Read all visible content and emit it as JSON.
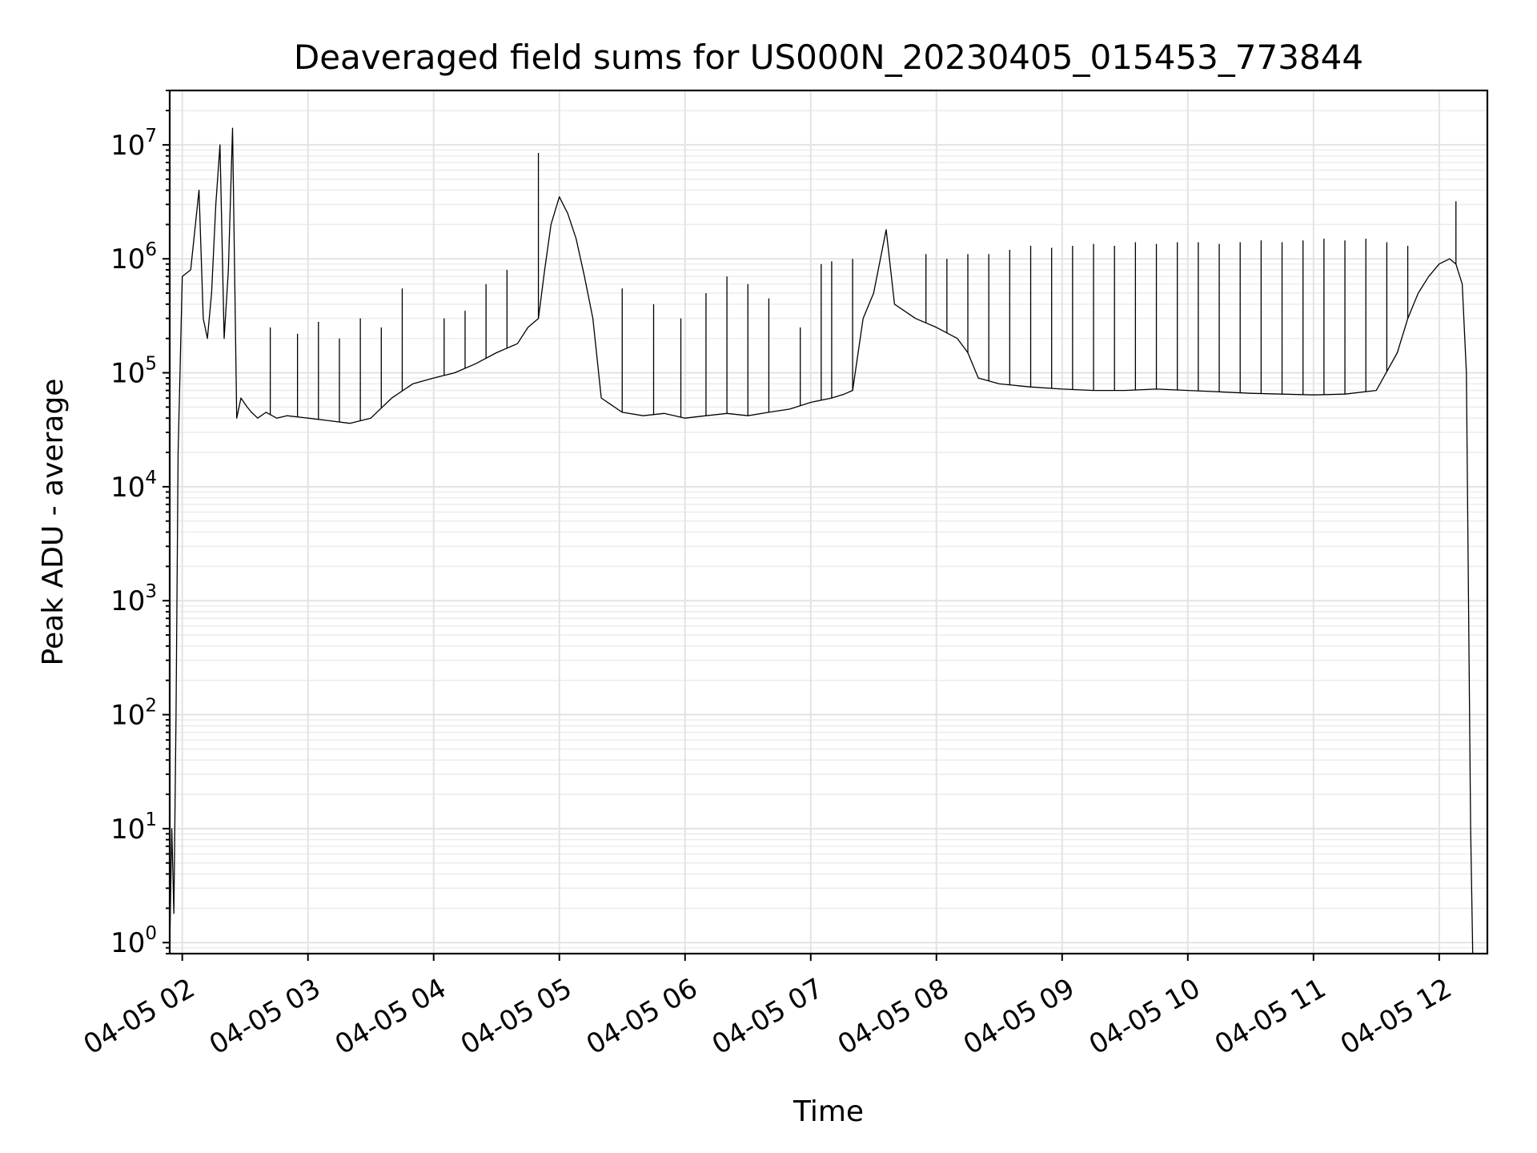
{
  "chart_data": {
    "type": "line",
    "title": "Deaveraged field sums for US000N_20230405_015453_773844",
    "xlabel": "Time",
    "ylabel": "Peak ADU - average",
    "yscale": "log",
    "grid": true,
    "xlim": [
      "04-05 01:54",
      "04-05 12:23"
    ],
    "ylim": [
      0.8,
      30000000
    ],
    "x_ticks": [
      "04-05 02",
      "04-05 03",
      "04-05 04",
      "04-05 05",
      "04-05 06",
      "04-05 07",
      "04-05 08",
      "04-05 09",
      "04-05 10",
      "04-05 11",
      "04-05 12"
    ],
    "y_ticks": [
      {
        "base": "10",
        "exp": "0"
      },
      {
        "base": "10",
        "exp": "1"
      },
      {
        "base": "10",
        "exp": "2"
      },
      {
        "base": "10",
        "exp": "3"
      },
      {
        "base": "10",
        "exp": "4"
      },
      {
        "base": "10",
        "exp": "5"
      },
      {
        "base": "10",
        "exp": "6"
      },
      {
        "base": "10",
        "exp": "7"
      }
    ],
    "series": [
      {
        "color": "#000000",
        "x": [
          "04-05 01:54",
          "04-05 01:55",
          "04-05 01:56",
          "04-05 01:57",
          "04-05 01:58",
          "04-05 02:00",
          "04-05 02:04",
          "04-05 02:08",
          "04-05 02:10",
          "04-05 02:12",
          "04-05 02:14",
          "04-05 02:16",
          "04-05 02:18",
          "04-05 02:20",
          "04-05 02:22",
          "04-05 02:24",
          "04-05 02:26",
          "04-05 02:28",
          "04-05 02:31",
          "04-05 02:33",
          "04-05 02:36",
          "04-05 02:40",
          "04-05 02:45",
          "04-05 02:50",
          "04-05 03:00",
          "04-05 03:10",
          "04-05 03:20",
          "04-05 03:30",
          "04-05 03:40",
          "04-05 03:50",
          "04-05 04:00",
          "04-05 04:10",
          "04-05 04:20",
          "04-05 04:30",
          "04-05 04:40",
          "04-05 04:45",
          "04-05 04:50",
          "04-05 04:53",
          "04-05 04:56",
          "04-05 05:00",
          "04-05 05:04",
          "04-05 05:08",
          "04-05 05:12",
          "04-05 05:16",
          "04-05 05:20",
          "04-05 05:30",
          "04-05 05:40",
          "04-05 05:50",
          "04-05 06:00",
          "04-05 06:10",
          "04-05 06:20",
          "04-05 06:30",
          "04-05 06:40",
          "04-05 06:50",
          "04-05 07:00",
          "04-05 07:10",
          "04-05 07:16",
          "04-05 07:20",
          "04-05 07:25",
          "04-05 07:30",
          "04-05 07:36",
          "04-05 07:40",
          "04-05 07:50",
          "04-05 08:00",
          "04-05 08:10",
          "04-05 08:15",
          "04-05 08:20",
          "04-05 08:30",
          "04-05 08:45",
          "04-05 09:00",
          "04-05 09:15",
          "04-05 09:30",
          "04-05 09:45",
          "04-05 10:00",
          "04-05 10:15",
          "04-05 10:30",
          "04-05 10:45",
          "04-05 11:00",
          "04-05 11:15",
          "04-05 11:30",
          "04-05 11:40",
          "04-05 11:45",
          "04-05 11:50",
          "04-05 11:55",
          "04-05 12:00",
          "04-05 12:05",
          "04-05 12:08",
          "04-05 12:11",
          "04-05 12:13",
          "04-05 12:15",
          "04-05 12:16"
        ],
        "y": [
          0.9,
          10,
          1.8,
          100,
          20000,
          700000,
          800000,
          4000000,
          300000,
          200000,
          500000,
          3000000,
          10000000,
          200000,
          800000,
          14000000,
          40000,
          60000,
          50000,
          45000,
          40000,
          45000,
          40000,
          42000,
          40000,
          38000,
          36000,
          40000,
          60000,
          80000,
          90000,
          100000,
          120000,
          150000,
          180000,
          250000,
          300000,
          800000,
          2000000,
          3500000,
          2500000,
          1500000,
          700000,
          300000,
          60000,
          45000,
          42000,
          44000,
          40000,
          42000,
          44000,
          42000,
          45000,
          48000,
          55000,
          60000,
          65000,
          70000,
          300000,
          500000,
          1800000,
          400000,
          300000,
          250000,
          200000,
          150000,
          90000,
          80000,
          75000,
          72000,
          70000,
          70000,
          72000,
          70000,
          68000,
          66000,
          65000,
          64000,
          65000,
          70000,
          150000,
          300000,
          500000,
          700000,
          900000,
          1000000,
          900000,
          600000,
          100000,
          10,
          0.8
        ]
      }
    ],
    "spikes": [
      {
        "x": "04-05 02:42",
        "y": 250000
      },
      {
        "x": "04-05 02:55",
        "y": 220000
      },
      {
        "x": "04-05 03:05",
        "y": 280000
      },
      {
        "x": "04-05 03:15",
        "y": 200000
      },
      {
        "x": "04-05 03:25",
        "y": 300000
      },
      {
        "x": "04-05 03:35",
        "y": 250000
      },
      {
        "x": "04-05 03:45",
        "y": 550000
      },
      {
        "x": "04-05 04:05",
        "y": 300000
      },
      {
        "x": "04-05 04:15",
        "y": 350000
      },
      {
        "x": "04-05 04:25",
        "y": 600000
      },
      {
        "x": "04-05 04:35",
        "y": 800000
      },
      {
        "x": "04-05 04:50",
        "y": 8500000
      },
      {
        "x": "04-05 05:30",
        "y": 550000
      },
      {
        "x": "04-05 05:45",
        "y": 400000
      },
      {
        "x": "04-05 05:58",
        "y": 300000
      },
      {
        "x": "04-05 06:10",
        "y": 500000
      },
      {
        "x": "04-05 06:20",
        "y": 700000
      },
      {
        "x": "04-05 06:30",
        "y": 600000
      },
      {
        "x": "04-05 06:40",
        "y": 450000
      },
      {
        "x": "04-05 06:55",
        "y": 250000
      },
      {
        "x": "04-05 07:05",
        "y": 900000
      },
      {
        "x": "04-05 07:10",
        "y": 950000
      },
      {
        "x": "04-05 07:20",
        "y": 1000000
      },
      {
        "x": "04-05 07:55",
        "y": 1100000
      },
      {
        "x": "04-05 08:05",
        "y": 1000000
      },
      {
        "x": "04-05 08:15",
        "y": 1100000
      },
      {
        "x": "04-05 08:25",
        "y": 1100000
      },
      {
        "x": "04-05 08:35",
        "y": 1200000
      },
      {
        "x": "04-05 08:45",
        "y": 1300000
      },
      {
        "x": "04-05 08:55",
        "y": 1250000
      },
      {
        "x": "04-05 09:05",
        "y": 1300000
      },
      {
        "x": "04-05 09:15",
        "y": 1350000
      },
      {
        "x": "04-05 09:25",
        "y": 1300000
      },
      {
        "x": "04-05 09:35",
        "y": 1400000
      },
      {
        "x": "04-05 09:45",
        "y": 1350000
      },
      {
        "x": "04-05 09:55",
        "y": 1400000
      },
      {
        "x": "04-05 10:05",
        "y": 1400000
      },
      {
        "x": "04-05 10:15",
        "y": 1350000
      },
      {
        "x": "04-05 10:25",
        "y": 1400000
      },
      {
        "x": "04-05 10:35",
        "y": 1450000
      },
      {
        "x": "04-05 10:45",
        "y": 1400000
      },
      {
        "x": "04-05 10:55",
        "y": 1450000
      },
      {
        "x": "04-05 11:05",
        "y": 1500000
      },
      {
        "x": "04-05 11:15",
        "y": 1450000
      },
      {
        "x": "04-05 11:25",
        "y": 1500000
      },
      {
        "x": "04-05 11:35",
        "y": 1400000
      },
      {
        "x": "04-05 11:45",
        "y": 1300000
      },
      {
        "x": "04-05 12:08",
        "y": 3200000
      }
    ]
  }
}
